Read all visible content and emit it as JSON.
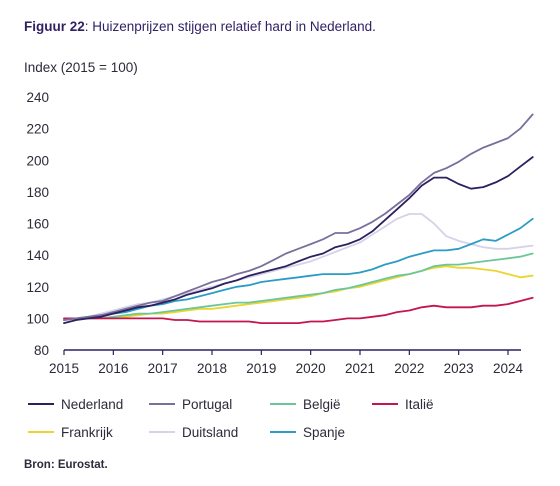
{
  "figure": {
    "title_prefix": "Figuur 22",
    "title_rest": ": Huizenprijzen stijgen relatief hard in Nederland.",
    "source": "Bron: Eurostat."
  },
  "chart_data": {
    "type": "line",
    "title": "Figuur 22: Huizenprijzen stijgen relatief hard in Nederland.",
    "ylabel": "Index (2015 = 100)",
    "xlabel": "",
    "xlim": [
      2015,
      2024.5
    ],
    "ylim": [
      80,
      240
    ],
    "x_ticks": [
      "2015",
      "2016",
      "2017",
      "2018",
      "2019",
      "2020",
      "2021",
      "2022",
      "2023",
      "2024"
    ],
    "y_ticks": [
      "80",
      "100",
      "120",
      "140",
      "160",
      "180",
      "200",
      "220",
      "240"
    ],
    "grid": false,
    "legend_position": "bottom",
    "x": [
      2015.0,
      2015.25,
      2015.5,
      2015.75,
      2016.0,
      2016.25,
      2016.5,
      2016.75,
      2017.0,
      2017.25,
      2017.5,
      2017.75,
      2018.0,
      2018.25,
      2018.5,
      2018.75,
      2019.0,
      2019.25,
      2019.5,
      2019.75,
      2020.0,
      2020.25,
      2020.5,
      2020.75,
      2021.0,
      2021.25,
      2021.5,
      2021.75,
      2022.0,
      2022.25,
      2022.5,
      2022.75,
      2023.0,
      2023.25,
      2023.5,
      2023.75,
      2024.0,
      2024.25,
      2024.5
    ],
    "series": [
      {
        "name": "Nederland",
        "color": "#2e1f5e",
        "values": [
          97,
          99,
          100,
          101,
          103,
          105,
          107,
          108,
          110,
          112,
          115,
          117,
          119,
          122,
          124,
          127,
          129,
          131,
          133,
          136,
          139,
          141,
          145,
          147,
          150,
          155,
          162,
          169,
          176,
          184,
          189,
          189,
          185,
          182,
          183,
          186,
          190,
          196,
          202
        ]
      },
      {
        "name": "Portugal",
        "color": "#7a6f9c",
        "values": [
          99,
          100,
          101,
          102,
          104,
          106,
          108,
          110,
          111,
          114,
          117,
          120,
          123,
          125,
          128,
          130,
          133,
          137,
          141,
          144,
          147,
          150,
          154,
          154,
          157,
          161,
          166,
          172,
          178,
          186,
          192,
          195,
          199,
          204,
          208,
          211,
          214,
          220,
          229
        ]
      },
      {
        "name": "België",
        "color": "#6cc69a",
        "values": [
          99,
          100,
          100,
          100,
          101,
          102,
          103,
          103,
          104,
          105,
          106,
          107,
          108,
          109,
          110,
          110,
          111,
          112,
          113,
          114,
          115,
          116,
          118,
          119,
          121,
          123,
          125,
          127,
          128,
          130,
          133,
          134,
          134,
          135,
          136,
          137,
          138,
          139,
          141
        ]
      },
      {
        "name": "Italië",
        "color": "#c4154f",
        "values": [
          100,
          100,
          100,
          100,
          100,
          100,
          100,
          100,
          100,
          99,
          99,
          98,
          98,
          98,
          98,
          98,
          97,
          97,
          97,
          97,
          98,
          98,
          99,
          100,
          100,
          101,
          102,
          104,
          105,
          107,
          108,
          107,
          107,
          107,
          108,
          108,
          109,
          111,
          113
        ]
      },
      {
        "name": "Frankrijk",
        "color": "#ead62e",
        "values": [
          100,
          100,
          100,
          100,
          100,
          101,
          102,
          103,
          103,
          104,
          105,
          106,
          106,
          107,
          108,
          109,
          110,
          111,
          112,
          113,
          114,
          116,
          117,
          119,
          120,
          122,
          124,
          126,
          128,
          130,
          132,
          133,
          132,
          132,
          131,
          130,
          128,
          126,
          127
        ]
      },
      {
        "name": "Duitsland",
        "color": "#d5d2ea",
        "values": [
          99,
          100,
          101,
          103,
          105,
          107,
          109,
          110,
          112,
          114,
          116,
          118,
          120,
          122,
          124,
          126,
          128,
          130,
          132,
          134,
          136,
          139,
          142,
          145,
          148,
          153,
          158,
          163,
          166,
          166,
          160,
          152,
          149,
          147,
          145,
          144,
          144,
          145,
          146
        ]
      },
      {
        "name": "Spanje",
        "color": "#2b9cc4",
        "values": [
          99,
          100,
          101,
          102,
          103,
          104,
          106,
          108,
          109,
          111,
          112,
          114,
          116,
          118,
          120,
          121,
          123,
          124,
          125,
          126,
          127,
          128,
          128,
          128,
          129,
          131,
          134,
          136,
          139,
          141,
          143,
          143,
          144,
          147,
          150,
          149,
          153,
          157,
          163
        ]
      }
    ]
  }
}
